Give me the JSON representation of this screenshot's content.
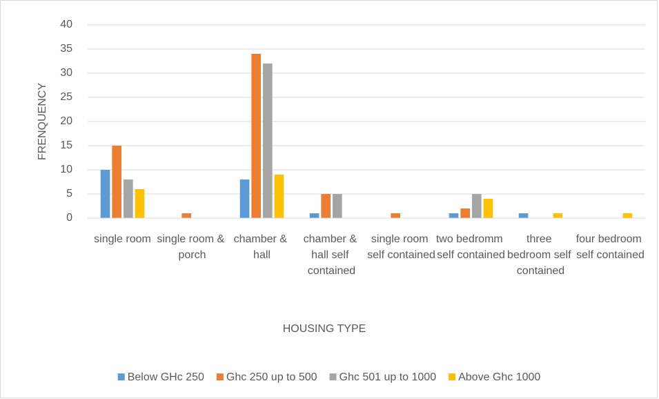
{
  "chart_data": {
    "type": "bar",
    "x_label": "HOUSING TYPE",
    "y_label": "FRENQUENCY",
    "categories": [
      "single room",
      "single room & porch",
      "chamber & hall",
      "chamber & hall self contained",
      "single room self contained",
      "two bedromm self contained",
      "three bedroom self contained",
      "four bedroom self contained"
    ],
    "series": [
      {
        "name": "Below GHc 250",
        "color": "#5b9bd5",
        "values": [
          10,
          0,
          8,
          1,
          0,
          1,
          1,
          0
        ]
      },
      {
        "name": "Ghc 250 up to 500",
        "color": "#ed7d31",
        "values": [
          15,
          1,
          34,
          5,
          1,
          2,
          0,
          0
        ]
      },
      {
        "name": "Ghc 501 up to 1000",
        "color": "#a5a5a5",
        "values": [
          8,
          0,
          32,
          5,
          0,
          5,
          0,
          0
        ]
      },
      {
        "name": "Above Ghc 1000",
        "color": "#ffc000",
        "values": [
          6,
          0,
          9,
          0,
          0,
          4,
          1,
          1
        ]
      }
    ],
    "ylim": [
      0,
      40
    ],
    "yticks": [
      0,
      5,
      10,
      15,
      20,
      25,
      30,
      35,
      40
    ],
    "grid": true,
    "legend": "bottom"
  }
}
